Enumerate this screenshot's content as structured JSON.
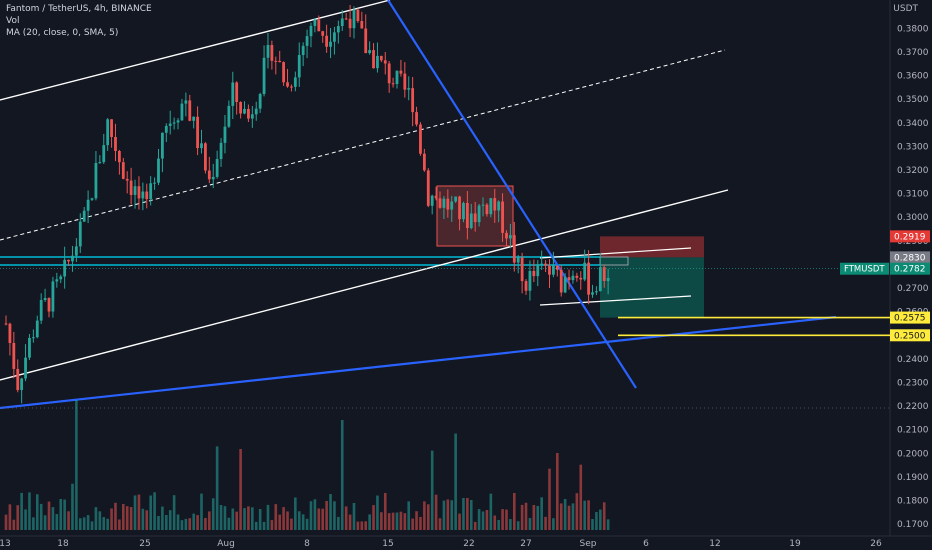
{
  "header": {
    "symbol_line": "Fantom / TetherUS, 4h, BINANCE",
    "vol_label": "Vol",
    "ma_label": "MA (20, close, 0, SMA, 5)",
    "currency": "USDT"
  },
  "colors": {
    "background": "#131722",
    "up": "#26a69a",
    "down": "#ef5350",
    "text": "#b2b5be",
    "trendline_blue": "#2962ff",
    "channel": "#ffffff",
    "horizontal_cyan": "#00bcd4",
    "support_yellow": "#ffeb3b",
    "stop_zone": "#7f2a2e",
    "target_zone": "#0e5c52",
    "price_tag_green": "#0b8a74",
    "price_tag_red": "#e53935"
  },
  "chart_data": {
    "type": "candlestick",
    "title": "Fantom / TetherUS, 4h, BINANCE",
    "ylabel": "USDT",
    "ylim": [
      0.165,
      0.392
    ],
    "y_ticks": [
      "0.3800",
      "0.3700",
      "0.3600",
      "0.3500",
      "0.3400",
      "0.3300",
      "0.3200",
      "0.3100",
      "0.3000",
      "0.2900",
      "0.2800",
      "0.2700",
      "0.2600",
      "0.2500",
      "0.2400",
      "0.2300",
      "0.2200",
      "0.2100",
      "0.2000",
      "0.1900",
      "0.1800",
      "0.1700"
    ],
    "x_ticks": [
      "13",
      "18",
      "25",
      "Aug",
      "8",
      "15",
      "22",
      "27",
      "Sep",
      "6",
      "12",
      "19",
      "26"
    ],
    "grid": false,
    "price_labels": [
      {
        "value": "0.2919",
        "style": "red"
      },
      {
        "value": "0.2830",
        "style": "gray"
      },
      {
        "label": "FTMUSDT",
        "value": "0.2782",
        "style": "green"
      },
      {
        "value": "0.2575",
        "style": "yellow"
      },
      {
        "value": "0.2500",
        "style": "yellow"
      }
    ],
    "key_prices": {
      "last": 0.2782,
      "stop": 0.2919,
      "entry": 0.283,
      "support_1": 0.2575,
      "support_2": 0.25
    },
    "anchors": [
      {
        "t": 0,
        "p": 0.255
      },
      {
        "t": 3,
        "p": 0.23
      },
      {
        "t": 8,
        "p": 0.258
      },
      {
        "t": 14,
        "p": 0.272
      },
      {
        "t": 20,
        "p": 0.298
      },
      {
        "t": 26,
        "p": 0.34
      },
      {
        "t": 30,
        "p": 0.32
      },
      {
        "t": 36,
        "p": 0.302
      },
      {
        "t": 40,
        "p": 0.338
      },
      {
        "t": 46,
        "p": 0.35
      },
      {
        "t": 52,
        "p": 0.315
      },
      {
        "t": 58,
        "p": 0.352
      },
      {
        "t": 62,
        "p": 0.342
      },
      {
        "t": 68,
        "p": 0.372
      },
      {
        "t": 72,
        "p": 0.355
      },
      {
        "t": 78,
        "p": 0.382
      },
      {
        "t": 82,
        "p": 0.378
      },
      {
        "t": 88,
        "p": 0.386
      },
      {
        "t": 92,
        "p": 0.372
      },
      {
        "t": 98,
        "p": 0.36
      },
      {
        "t": 104,
        "p": 0.35
      },
      {
        "t": 108,
        "p": 0.31
      },
      {
        "t": 112,
        "p": 0.306
      },
      {
        "t": 118,
        "p": 0.3
      },
      {
        "t": 124,
        "p": 0.307
      },
      {
        "t": 128,
        "p": 0.295
      },
      {
        "t": 132,
        "p": 0.272
      },
      {
        "t": 138,
        "p": 0.278
      },
      {
        "t": 142,
        "p": 0.273
      },
      {
        "t": 146,
        "p": 0.28
      },
      {
        "t": 150,
        "p": 0.27
      },
      {
        "t": 154,
        "p": 0.278
      }
    ],
    "candle_count": 155,
    "annotations": [
      {
        "type": "ascending-channel",
        "color": "white"
      },
      {
        "type": "descending-trendline",
        "color": "blue"
      },
      {
        "type": "ascending-support-line",
        "color": "blue"
      },
      {
        "type": "consolidation-box",
        "color": "red"
      },
      {
        "type": "short-position-tool",
        "stop": 0.2919,
        "entry": 0.283,
        "target": 0.2575
      }
    ]
  }
}
